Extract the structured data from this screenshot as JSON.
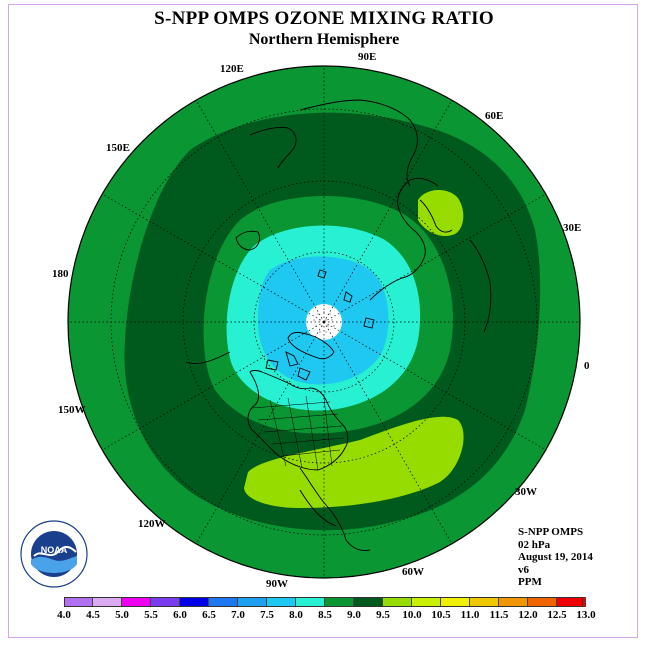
{
  "title": "S-NPP OMPS OZONE MIXING RATIO",
  "subtitle": "Northern Hemisphere",
  "longitude_labels": {
    "lon_90e": "90E",
    "lon_120e": "120E",
    "lon_60e": "60E",
    "lon_150e": "150E",
    "lon_30e": "30E",
    "lon_180": "180",
    "lon_0": "0",
    "lon_150w": "150W",
    "lon_30w": "30W",
    "lon_120w": "120W",
    "lon_60w": "60W",
    "lon_90w": "90W"
  },
  "info": {
    "instrument": "S-NPP OMPS",
    "level": "02 hPa",
    "date": "August 19, 2014",
    "version": "v6",
    "units": "PPM"
  },
  "logo": {
    "text": "NOAA",
    "ring_text": "NATIONAL OCEANIC AND ATMOSPHERIC ADMINISTRATION · U.S. DEPARTMENT OF COMMERCE"
  },
  "colorbar": {
    "ticks": [
      "4.0",
      "4.5",
      "5.0",
      "5.5",
      "6.0",
      "6.5",
      "7.0",
      "7.5",
      "8.0",
      "8.5",
      "9.0",
      "9.5",
      "10.0",
      "10.5",
      "11.0",
      "11.5",
      "12.0",
      "12.5",
      "13.0"
    ],
    "colors": [
      "#b070f0",
      "#dcaaf0",
      "#f000f0",
      "#7a3cf0",
      "#0000e8",
      "#1e78f0",
      "#1ea0f0",
      "#1ec8f0",
      "#28f0d2",
      "#0a9632",
      "#005a1e",
      "#96dc00",
      "#c8f000",
      "#f0f000",
      "#f0c800",
      "#f09600",
      "#f06400",
      "#f00000",
      "#8c5030"
    ]
  },
  "field_colors": {
    "c75": "#1ec8f0",
    "c80": "#28f0d2",
    "c85": "#0a9632",
    "c90": "#005a1e",
    "c95": "#96dc00"
  }
}
